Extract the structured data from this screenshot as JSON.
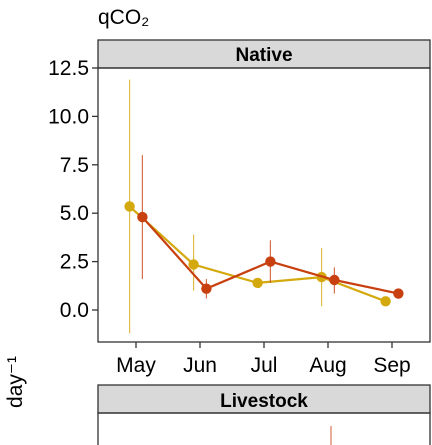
{
  "chart_data": {
    "type": "line",
    "title": "qCO₂",
    "ylabel": "day⁻¹",
    "x": [
      "May",
      "Jun",
      "Jul",
      "Aug",
      "Sep"
    ],
    "ylim": [
      -1.6,
      13.0
    ],
    "yticks": [
      0.0,
      2.5,
      5.0,
      7.5,
      10.0,
      12.5
    ],
    "ytick_labels": [
      "0.0",
      "2.5",
      "5.0",
      "7.5",
      "10.0",
      "12.5"
    ],
    "grid": false,
    "legend": "none",
    "panels": [
      {
        "label": "Native",
        "series": [
          {
            "color": "#d4a90e",
            "x_offset": -0.1,
            "values": [
              5.35,
              2.35,
              1.4,
              1.7,
              0.45
            ],
            "err_low": [
              -1.2,
              1.0,
              1.4,
              0.2,
              0.45
            ],
            "err_high": [
              11.9,
              3.9,
              1.4,
              3.2,
              0.45
            ]
          },
          {
            "color": "#c8400f",
            "x_offset": 0.1,
            "values": [
              4.8,
              1.1,
              2.5,
              1.55,
              0.85
            ],
            "err_low": [
              1.6,
              0.6,
              1.4,
              0.85,
              0.85
            ],
            "err_high": [
              8.0,
              1.6,
              3.6,
              2.2,
              0.85
            ]
          }
        ]
      },
      {
        "label": "Livestock",
        "series": []
      }
    ]
  },
  "colors": {
    "series_a": "#d4a90e",
    "series_b": "#c8400f",
    "strip": "#d9d9d9"
  }
}
